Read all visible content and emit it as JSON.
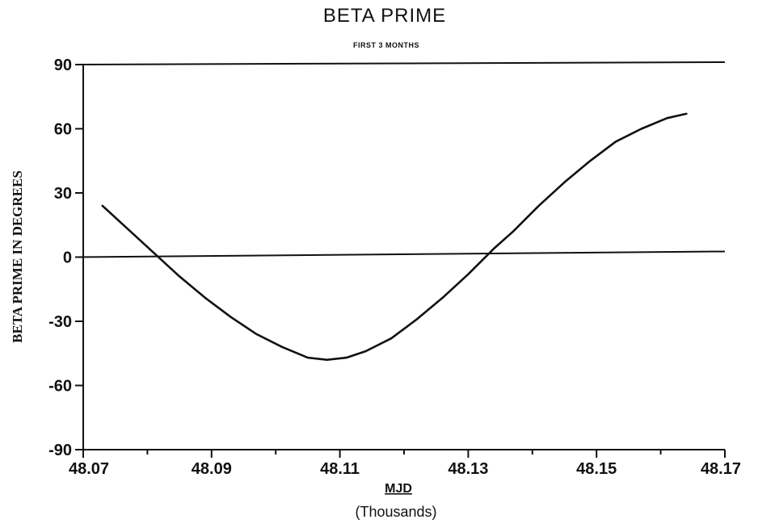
{
  "chart_data": {
    "type": "line",
    "title": "BETA PRIME",
    "subtitle": "FIRST 3 MONTHS",
    "xlabel": "MJD",
    "xlabel_unit": "(Thousands)",
    "ylabel": "BETA PRIME IN DEGREES",
    "xlim": [
      48.07,
      48.17
    ],
    "ylim": [
      -90,
      90
    ],
    "x_ticks": [
      48.07,
      48.09,
      48.11,
      48.13,
      48.15,
      48.17
    ],
    "x_tick_labels": [
      "48.07",
      "48.09",
      "48.11",
      "48.13",
      "48.15",
      "48.17"
    ],
    "y_ticks": [
      90,
      60,
      30,
      0,
      -30,
      -60,
      -90
    ],
    "y_tick_labels": [
      "90",
      "60",
      "30",
      "0",
      "-30",
      "-60",
      "-90"
    ],
    "grid": false,
    "zero_line": true,
    "series": [
      {
        "x": [
          48.073,
          48.077,
          48.081,
          48.085,
          48.089,
          48.093,
          48.097,
          48.101,
          48.105,
          48.108,
          48.111,
          48.114,
          48.118,
          48.122,
          48.126,
          48.13,
          48.134,
          48.137,
          48.141,
          48.145,
          48.149,
          48.153,
          48.157,
          48.161,
          48.164
        ],
        "y": [
          24,
          13,
          2,
          -9,
          -19,
          -28,
          -36,
          -42,
          -47,
          -48,
          -47,
          -44,
          -38,
          -29,
          -19,
          -8,
          4,
          12,
          24,
          35,
          45,
          54,
          60,
          65,
          67
        ]
      }
    ]
  }
}
